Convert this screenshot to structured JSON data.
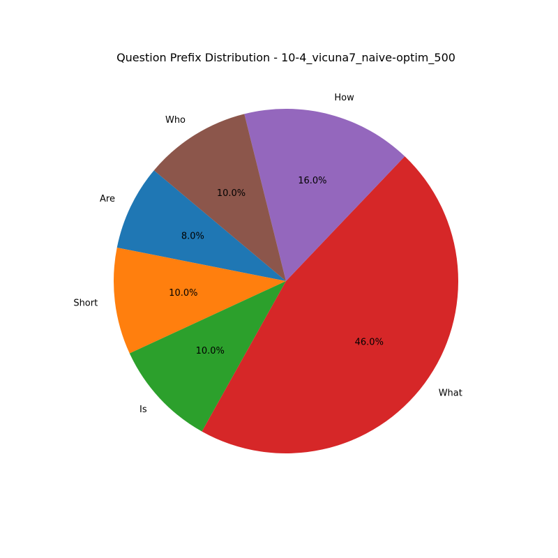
{
  "chart_data": {
    "type": "pie",
    "title": "Question Prefix Distribution - 10-4_vicuna7_naive-optim_500",
    "categories": [
      "Are",
      "Short",
      "Is",
      "What",
      "How",
      "Who"
    ],
    "values": [
      8.0,
      10.0,
      10.0,
      46.0,
      16.0,
      10.0
    ],
    "percent_labels": [
      "8.0%",
      "10.0%",
      "10.0%",
      "46.0%",
      "16.0%",
      "10.0%"
    ],
    "colors": [
      "#1f77b4",
      "#ff7f0e",
      "#2ca02c",
      "#d62728",
      "#9467bd",
      "#8c564b"
    ],
    "start_angle_deg": 140,
    "direction": "counterclockwise",
    "legend": "none"
  }
}
